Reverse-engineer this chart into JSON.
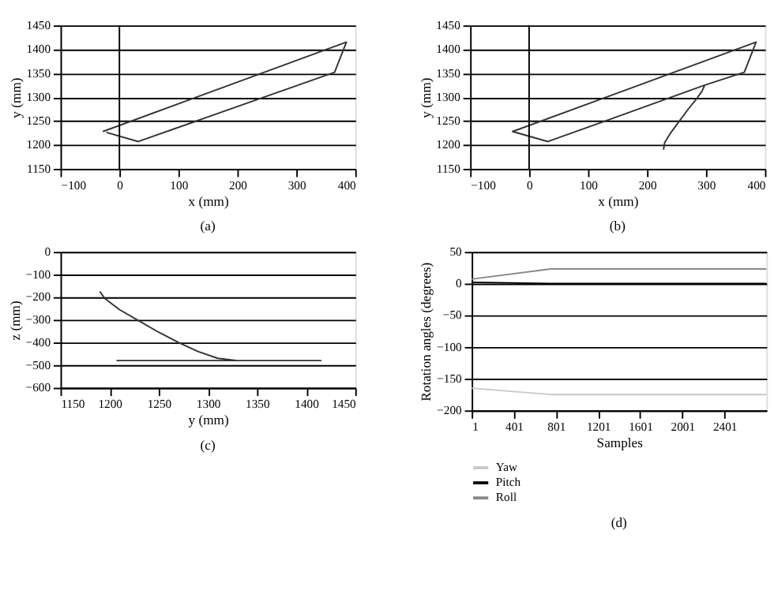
{
  "chart_data": [
    {
      "type": "line",
      "title": "(a)",
      "xlabel": "x (mm)",
      "ylabel": "y (mm)",
      "xlim": [
        -100,
        400
      ],
      "xticks": [
        -100,
        0,
        100,
        200,
        300,
        400
      ],
      "ylim": [
        1150,
        1450
      ],
      "yticks": [
        1150,
        1200,
        1250,
        1300,
        1350,
        1400,
        1450
      ],
      "grid": "y",
      "ref_lines": [
        {
          "axis": "x",
          "value": 0,
          "color": "#000000"
        }
      ],
      "series": [
        {
          "color": "#333333",
          "x": [
            -22,
            32,
            365,
            385,
            -28
          ],
          "values": [
            1226,
            1207,
            1352,
            1415,
            1228
          ]
        }
      ]
    },
    {
      "type": "line",
      "title": "(b)",
      "xlabel": "x (mm)",
      "ylabel": "y (mm)",
      "xlim": [
        -100,
        400
      ],
      "xticks": [
        -100,
        0,
        100,
        200,
        300,
        400
      ],
      "ylim": [
        1150,
        1450
      ],
      "yticks": [
        1150,
        1200,
        1250,
        1300,
        1350,
        1400,
        1450
      ],
      "grid": "y",
      "ref_lines": [
        {
          "axis": "x",
          "value": 0,
          "color": "#000000"
        }
      ],
      "series": [
        {
          "color": "#333333",
          "x": [
            228,
            230,
            240,
            255,
            270,
            285,
            293,
            298,
            32,
            -28,
            385,
            365,
            298
          ],
          "values": [
            1190,
            1205,
            1225,
            1250,
            1275,
            1298,
            1312,
            1325,
            1207,
            1228,
            1415,
            1352,
            1325
          ]
        }
      ]
    },
    {
      "type": "line",
      "title": "(c)",
      "xlabel": "y (mm)",
      "ylabel": "z (mm)",
      "xlim": [
        1150,
        1450
      ],
      "xticks": [
        1150,
        1200,
        1250,
        1300,
        1350,
        1400,
        1450
      ],
      "ylim": [
        -600,
        0
      ],
      "yticks": [
        -600,
        -500,
        -400,
        -300,
        -200,
        -100,
        0
      ],
      "grid": "y",
      "series": [
        {
          "color": "#333333",
          "x": [
            1190,
            1195,
            1210,
            1230,
            1250,
            1270,
            1290,
            1310,
            1330,
            1415,
            1207
          ],
          "values": [
            -175,
            -205,
            -255,
            -305,
            -355,
            -400,
            -440,
            -470,
            -480,
            -480,
            -480
          ]
        }
      ]
    },
    {
      "type": "line",
      "title": "(d)",
      "xlabel": "Samples",
      "ylabel": "Rotation angles (degrees)",
      "xlim": [
        1,
        2800
      ],
      "xticks": [
        1,
        401,
        801,
        1201,
        1601,
        2001,
        2401
      ],
      "ylim": [
        -200,
        50
      ],
      "yticks": [
        -200,
        -150,
        -100,
        -50,
        0,
        50
      ],
      "grid": "y",
      "legend": "bottom",
      "series": [
        {
          "name": "Yaw",
          "color": "#c8c8c8",
          "x": [
            1,
            750,
            2800
          ],
          "values": [
            -165,
            -175,
            -175
          ]
        },
        {
          "name": "Pitch",
          "color": "#000000",
          "x": [
            1,
            750,
            2800
          ],
          "values": [
            2,
            0,
            0
          ]
        },
        {
          "name": "Roll",
          "color": "#888888",
          "x": [
            1,
            750,
            2800
          ],
          "values": [
            7,
            23,
            23
          ]
        }
      ]
    }
  ]
}
